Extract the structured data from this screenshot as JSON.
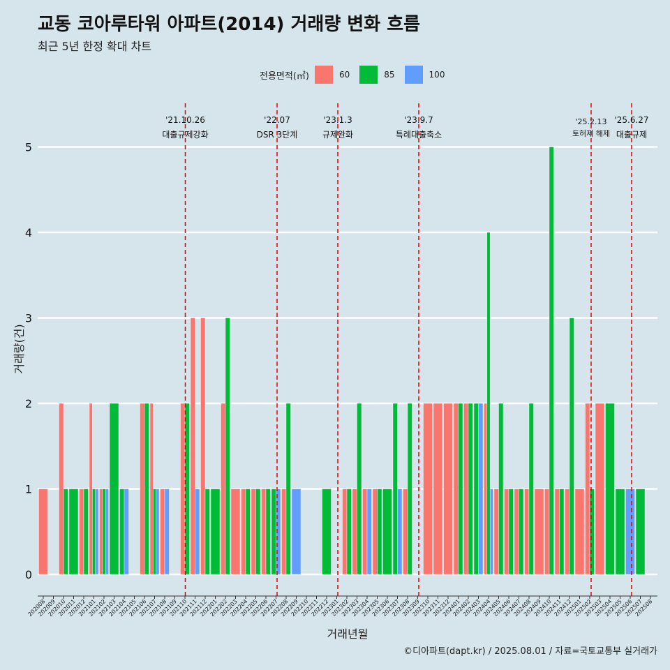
{
  "header": {
    "title": "교동 코아루타워 아파트(2014) 거래량 변화 흐름",
    "subtitle": "최근 5년 한정 확대 차트"
  },
  "legend": {
    "title": "전용면적(㎡)",
    "items": [
      {
        "label": "60",
        "color": "#f8766d"
      },
      {
        "label": "85",
        "color": "#00ba38"
      },
      {
        "label": "100",
        "color": "#619cff"
      }
    ]
  },
  "footer": {
    "source": "©디아파트(dapt.kr) / 2025.08.01 / 자료=국토교통부 실거래가"
  },
  "chart_data": {
    "type": "bar",
    "xlabel": "거래년월",
    "ylabel": "거래량(건)",
    "ylim": [
      0,
      5
    ],
    "yticks": [
      0,
      1,
      2,
      3,
      4,
      5
    ],
    "grid": "horizontal",
    "background": "#d6e4ec",
    "categories": [
      "202008",
      "202009",
      "202010",
      "202011",
      "202012",
      "202101",
      "202102",
      "202103",
      "202104",
      "202105",
      "202106",
      "202107",
      "202108",
      "202109",
      "202110",
      "202111",
      "202112",
      "202201",
      "202202",
      "202203",
      "202204",
      "202205",
      "202206",
      "202207",
      "202208",
      "202209",
      "202210",
      "202211",
      "202212",
      "202301",
      "202302",
      "202303",
      "202304",
      "202305",
      "202306",
      "202307",
      "202308",
      "202309",
      "202310",
      "202311",
      "202312",
      "202401",
      "202402",
      "202403",
      "202404",
      "202405",
      "202406",
      "202407",
      "202408",
      "202409",
      "202410",
      "202411",
      "202412",
      "202501",
      "202502",
      "202503",
      "202504",
      "202505",
      "202506",
      "202507",
      "202508"
    ],
    "series": [
      {
        "name": "60",
        "color": "#f8766d",
        "values": [
          1,
          0,
          2,
          0,
          1,
          2,
          1,
          0,
          0,
          0,
          2,
          2,
          1,
          0,
          2,
          3,
          3,
          0,
          2,
          1,
          1,
          1,
          1,
          0,
          1,
          0,
          0,
          0,
          0,
          0,
          1,
          1,
          1,
          1,
          0,
          0,
          1,
          0,
          2,
          2,
          2,
          2,
          2,
          0,
          2,
          1,
          1,
          1,
          1,
          1,
          1,
          1,
          1,
          1,
          2,
          2,
          0,
          0,
          0,
          0,
          0
        ]
      },
      {
        "name": "85",
        "color": "#00ba38",
        "values": [
          0,
          0,
          1,
          1,
          1,
          1,
          1,
          2,
          1,
          0,
          2,
          1,
          0,
          0,
          2,
          0,
          1,
          1,
          3,
          0,
          1,
          1,
          1,
          1,
          2,
          0,
          0,
          0,
          1,
          0,
          1,
          2,
          0,
          1,
          1,
          2,
          2,
          0,
          0,
          0,
          0,
          2,
          2,
          2,
          4,
          2,
          1,
          1,
          2,
          0,
          5,
          1,
          3,
          0,
          1,
          0,
          2,
          1,
          0,
          1,
          0
        ]
      },
      {
        "name": "100",
        "color": "#619cff",
        "values": [
          0,
          0,
          0,
          0,
          0,
          1,
          1,
          0,
          1,
          0,
          0,
          1,
          1,
          0,
          0,
          1,
          0,
          0,
          0,
          0,
          0,
          0,
          0,
          1,
          0,
          1,
          0,
          0,
          0,
          0,
          0,
          0,
          1,
          0,
          0,
          1,
          0,
          0,
          0,
          0,
          0,
          0,
          0,
          2,
          1,
          0,
          0,
          0,
          0,
          0,
          0,
          0,
          0,
          0,
          0,
          0,
          0,
          0,
          1,
          0,
          0
        ]
      }
    ],
    "annotations": [
      {
        "date": "'21.10.26",
        "label": "대출규제강화"
      },
      {
        "date": "'22.07",
        "label": "DSR 3단계"
      },
      {
        "date": "'23.1.3",
        "label": "규제완화"
      },
      {
        "date": "'23.9.7",
        "label": "특례대출축소"
      },
      {
        "date": "'25.2.13",
        "label": "토허제 해제"
      },
      {
        "date": "'25.6.27",
        "label": "대출규제"
      }
    ]
  }
}
